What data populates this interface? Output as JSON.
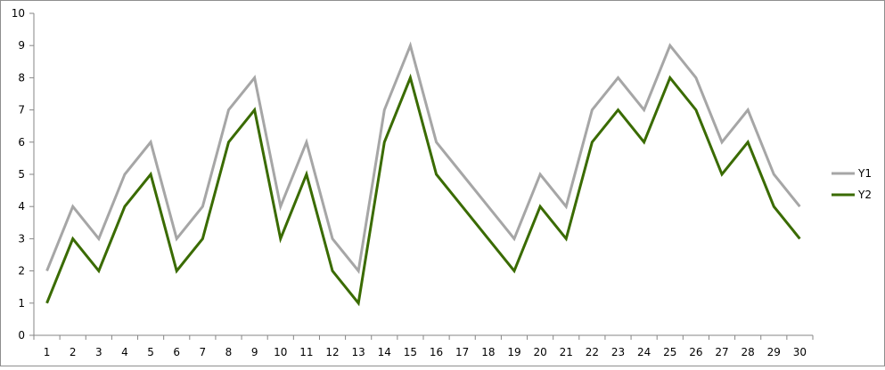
{
  "chart_data": {
    "type": "line",
    "title": "",
    "xlabel": "",
    "ylabel": "",
    "x": [
      1,
      2,
      3,
      4,
      5,
      6,
      7,
      8,
      9,
      10,
      11,
      12,
      13,
      14,
      15,
      16,
      17,
      18,
      19,
      20,
      21,
      22,
      23,
      24,
      25,
      26,
      27,
      28,
      29,
      30
    ],
    "ylim": [
      0,
      10
    ],
    "yticks": [
      0,
      1,
      2,
      3,
      4,
      5,
      6,
      7,
      8,
      9,
      10
    ],
    "grid": false,
    "legend_position": "right",
    "series": [
      {
        "name": "Y1",
        "color": "#a6a6a6",
        "values": [
          2,
          4,
          3,
          5,
          6,
          3,
          4,
          7,
          8,
          4,
          6,
          3,
          2,
          7,
          9,
          6,
          5,
          4,
          3,
          5,
          4,
          7,
          8,
          7,
          9,
          8,
          6,
          7,
          5,
          4
        ]
      },
      {
        "name": "Y2",
        "color": "#3a6b00",
        "values": [
          1,
          3,
          2,
          4,
          5,
          2,
          3,
          6,
          7,
          3,
          5,
          2,
          1,
          6,
          8,
          5,
          4,
          3,
          2,
          4,
          3,
          6,
          7,
          6,
          8,
          7,
          5,
          6,
          4,
          3
        ]
      }
    ]
  }
}
